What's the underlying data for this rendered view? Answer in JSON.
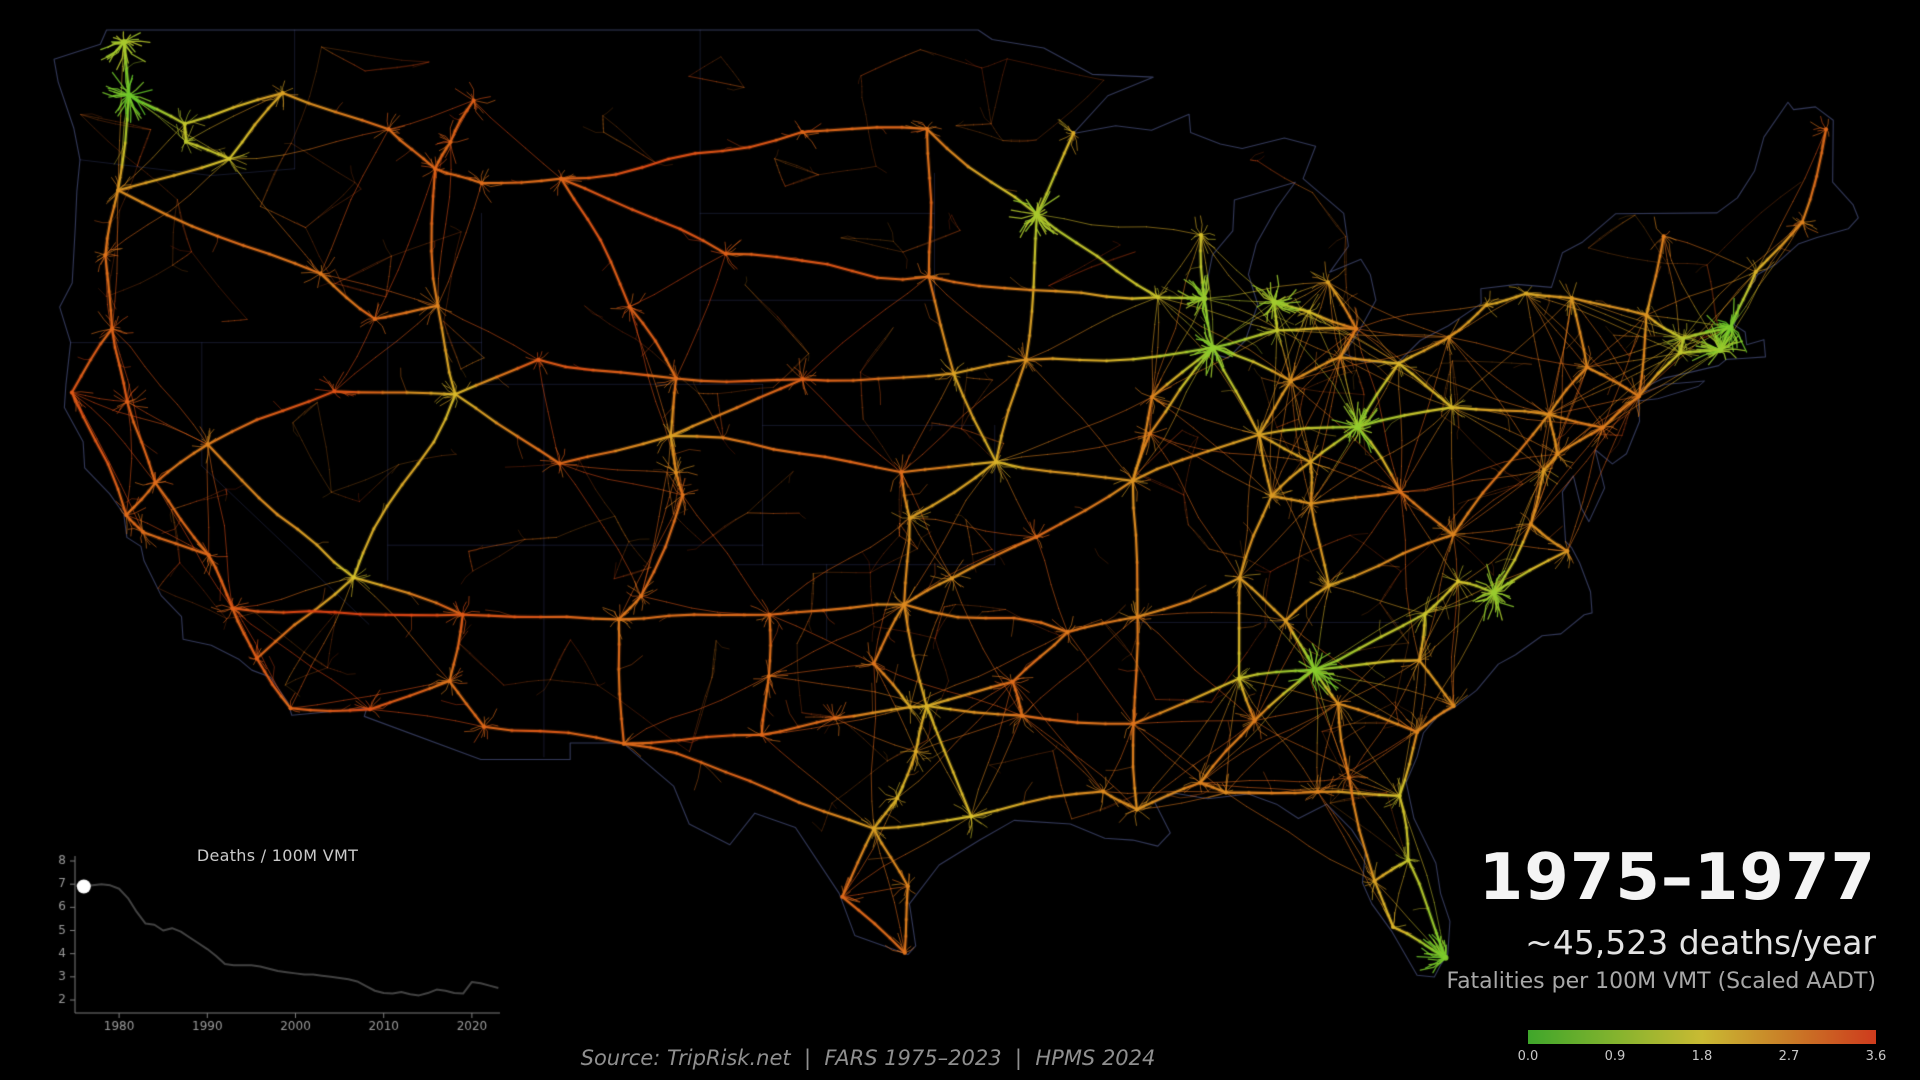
{
  "header": {
    "year_range": "1975–1977",
    "deaths_per_year": "~45,523 deaths/year",
    "metric_label": "Fatalities per 100M VMT (Scaled AADT)"
  },
  "legend": {
    "ticks": [
      "0.0",
      "0.9",
      "1.8",
      "2.7",
      "3.6"
    ],
    "min": 0.0,
    "max": 3.6,
    "stops": [
      {
        "v": 0.0,
        "c": "#3fa62b"
      },
      {
        "v": 0.9,
        "c": "#83b32e"
      },
      {
        "v": 1.8,
        "c": "#c9ba33"
      },
      {
        "v": 2.7,
        "c": "#c97c27"
      },
      {
        "v": 3.6,
        "c": "#ce3b1d"
      }
    ]
  },
  "footer": {
    "source": "Source: TripRisk.net  |  FARS 1975–2023  |  HPMS 2024"
  },
  "chart_data": {
    "type": "line",
    "title": "Deaths / 100M VMT",
    "x_start": 1975,
    "x": [
      1975,
      1976,
      1977,
      1978,
      1979,
      1980,
      1981,
      1982,
      1983,
      1984,
      1985,
      1986,
      1987,
      1988,
      1989,
      1990,
      1991,
      1992,
      1993,
      1994,
      1995,
      1996,
      1997,
      1998,
      1999,
      2000,
      2001,
      2002,
      2003,
      2004,
      2005,
      2006,
      2007,
      2008,
      2009,
      2010,
      2011,
      2012,
      2013,
      2014,
      2015,
      2016,
      2017,
      2018,
      2019,
      2020,
      2021,
      2022,
      2023
    ],
    "values": [
      6.95,
      6.9,
      6.95,
      7.0,
      6.95,
      6.8,
      6.4,
      5.8,
      5.3,
      5.25,
      5.0,
      5.1,
      4.95,
      4.7,
      4.45,
      4.2,
      3.9,
      3.55,
      3.5,
      3.5,
      3.5,
      3.45,
      3.35,
      3.25,
      3.2,
      3.15,
      3.1,
      3.1,
      3.05,
      3.0,
      2.95,
      2.9,
      2.8,
      2.6,
      2.4,
      2.3,
      2.28,
      2.35,
      2.25,
      2.2,
      2.3,
      2.45,
      2.4,
      2.3,
      2.28,
      2.78,
      2.72,
      2.62,
      2.52
    ],
    "marker": {
      "year": 1976,
      "value": 6.9,
      "color": "#ffffff"
    },
    "xticks": [
      1980,
      1990,
      2000,
      2010,
      2020
    ],
    "yticks": [
      2,
      3,
      4,
      5,
      6,
      7,
      8
    ],
    "ylim": [
      2,
      8
    ],
    "xlim": [
      1975,
      2023
    ],
    "grid": false,
    "line_color": "#434343",
    "axis_color": "#7d7d7d",
    "tick_label_color": "#9a9a9a",
    "title_color": "#cbcbcb"
  },
  "map": {
    "colors": {
      "background": "#000000",
      "coastline": "rgba(95,105,165,0.55)",
      "state_line": "rgba(70,80,140,0.30)",
      "road_stops": [
        {
          "v": 0.0,
          "c": "#46c426"
        },
        {
          "v": 0.9,
          "c": "#92cc2e"
        },
        {
          "v": 1.8,
          "c": "#d8c22c"
        },
        {
          "v": 2.7,
          "c": "#dd7a1d"
        },
        {
          "v": 3.6,
          "c": "#dd3d12"
        }
      ]
    },
    "cities": [
      [
        "bel",
        -122.49,
        48.75,
        1.2
      ],
      [
        "sea",
        -122.33,
        47.61,
        0.5
      ],
      [
        "spo",
        -117.41,
        47.66,
        2.2
      ],
      [
        "ell",
        -120.55,
        46.99,
        1.5
      ],
      [
        "yak",
        -120.51,
        46.6,
        1.4
      ],
      [
        "tri",
        -119.12,
        46.22,
        1.7
      ],
      [
        "por",
        -122.68,
        45.52,
        2.4
      ],
      [
        "eug",
        -123.09,
        44.05,
        2.8
      ],
      [
        "med",
        -122.87,
        42.33,
        3.0
      ],
      [
        "eur",
        -124.16,
        40.8,
        3.2
      ],
      [
        "red",
        -122.39,
        40.58,
        3.1
      ],
      [
        "sac",
        -121.49,
        38.58,
        2.9
      ],
      [
        "sfo",
        -122.42,
        37.77,
        2.9
      ],
      [
        "sjc",
        -121.89,
        37.34,
        2.9
      ],
      [
        "fre",
        -119.78,
        36.75,
        3.0
      ],
      [
        "bak",
        -119.02,
        35.37,
        3.1
      ],
      [
        "lax",
        -118.24,
        34.05,
        3.1
      ],
      [
        "sdg",
        -117.16,
        32.72,
        3.0
      ],
      [
        "yum",
        -114.62,
        32.69,
        3.3
      ],
      [
        "phx",
        -112.07,
        33.45,
        2.8
      ],
      [
        "tuc",
        -110.97,
        32.22,
        3.0
      ],
      [
        "fla",
        -111.65,
        35.2,
        3.2
      ],
      [
        "lvg",
        -115.14,
        36.17,
        1.8
      ],
      [
        "rno",
        -119.81,
        39.53,
        2.6
      ],
      [
        "elk",
        -115.76,
        40.83,
        3.3
      ],
      [
        "boi",
        -116.2,
        43.62,
        2.7
      ],
      [
        "twf",
        -114.46,
        42.56,
        2.9
      ],
      [
        "poc",
        -112.45,
        42.87,
        2.6
      ],
      [
        "slc",
        -111.89,
        40.76,
        1.9
      ],
      [
        "rws",
        -109.23,
        41.59,
        3.2
      ],
      [
        "mso",
        -114.02,
        46.87,
        2.9
      ],
      [
        "hel",
        -112.04,
        46.59,
        3.0
      ],
      [
        "but",
        -112.53,
        46.0,
        3.0
      ],
      [
        "gtf",
        -111.3,
        47.5,
        3.1
      ],
      [
        "boz",
        -111.04,
        45.68,
        2.9
      ],
      [
        "bil",
        -108.5,
        45.78,
        3.0
      ],
      [
        "cas",
        -106.31,
        42.85,
        3.1
      ],
      [
        "che",
        -104.82,
        41.14,
        2.9
      ],
      [
        "den",
        -104.99,
        39.74,
        2.2
      ],
      [
        "cos",
        -104.82,
        38.83,
        2.5
      ],
      [
        "pue",
        -104.61,
        38.27,
        2.8
      ],
      [
        "gjt",
        -108.55,
        39.06,
        3.0
      ],
      [
        "abq",
        -106.65,
        35.08,
        2.7
      ],
      [
        "saf",
        -105.94,
        35.69,
        2.8
      ],
      [
        "elp",
        -106.49,
        31.76,
        2.9
      ],
      [
        "bis",
        -100.78,
        46.81,
        3.0
      ],
      [
        "far",
        -96.79,
        46.88,
        2.8
      ],
      [
        "rap",
        -103.23,
        44.08,
        3.1
      ],
      [
        "sif",
        -96.73,
        43.55,
        2.8
      ],
      [
        "nop",
        -100.77,
        41.12,
        3.1
      ],
      [
        "oma",
        -95.93,
        41.26,
        2.2
      ],
      [
        "dsm",
        -93.62,
        41.59,
        2.4
      ],
      [
        "msp",
        -93.27,
        44.98,
        1.2
      ],
      [
        "dul",
        -92.1,
        46.79,
        2.1
      ],
      [
        "kcm",
        -94.58,
        39.1,
        2.0
      ],
      [
        "sal",
        -97.61,
        38.84,
        2.9
      ],
      [
        "wic",
        -97.34,
        37.69,
        2.3
      ],
      [
        "okc",
        -97.52,
        35.47,
        2.5
      ],
      [
        "tul",
        -95.99,
        36.15,
        2.4
      ],
      [
        "sgf",
        -93.29,
        37.21,
        2.9
      ],
      [
        "stl",
        -90.2,
        38.63,
        2.4
      ],
      [
        "chi",
        -87.63,
        41.88,
        0.9
      ],
      [
        "mil",
        -87.91,
        43.04,
        1.0
      ],
      [
        "mad",
        -89.4,
        43.07,
        1.6
      ],
      [
        "grb",
        -88.02,
        44.51,
        1.8
      ],
      [
        "kal",
        -85.59,
        42.29,
        1.5
      ],
      [
        "grr",
        -85.67,
        42.96,
        1.1
      ],
      [
        "lan",
        -84.56,
        42.73,
        1.8
      ],
      [
        "det",
        -83.05,
        42.33,
        2.7
      ],
      [
        "sag",
        -83.95,
        43.42,
        2.2
      ],
      [
        "tol",
        -83.56,
        41.65,
        2.5
      ],
      [
        "ftw",
        -85.14,
        41.08,
        2.4
      ],
      [
        "ind",
        -86.16,
        39.77,
        2.2
      ],
      [
        "peo",
        -89.59,
        40.69,
        2.6
      ],
      [
        "spi",
        -89.65,
        39.8,
        2.7
      ],
      [
        "col",
        -83.0,
        39.96,
        0.9
      ],
      [
        "cle",
        -81.69,
        41.5,
        2.0
      ],
      [
        "cin",
        -84.51,
        39.1,
        2.2
      ],
      [
        "lex",
        -84.5,
        38.05,
        2.4
      ],
      [
        "lou",
        -85.76,
        38.25,
        2.3
      ],
      [
        "cwv",
        -81.63,
        38.35,
        2.8
      ],
      [
        "pit",
        -79.99,
        40.44,
        1.9
      ],
      [
        "eri",
        -80.08,
        42.13,
        2.4
      ],
      [
        "nas",
        -86.78,
        36.16,
        2.3
      ],
      [
        "mem",
        -90.05,
        35.15,
        2.6
      ],
      [
        "lit",
        -92.29,
        34.75,
        2.7
      ],
      [
        "dal",
        -96.8,
        32.78,
        2.0
      ],
      [
        "fwx",
        -97.33,
        32.75,
        2.1
      ],
      [
        "wac",
        -97.15,
        31.55,
        2.1
      ],
      [
        "aus",
        -97.74,
        30.27,
        2.0
      ],
      [
        "sat",
        -98.49,
        29.42,
        2.2
      ],
      [
        "hou",
        -95.37,
        29.76,
        1.8
      ],
      [
        "cor",
        -97.4,
        27.8,
        2.6
      ],
      [
        "lar",
        -99.5,
        27.5,
        3.0
      ],
      [
        "bro",
        -97.5,
        25.9,
        2.8
      ],
      [
        "ama",
        -101.83,
        35.2,
        2.9
      ],
      [
        "lub",
        -101.85,
        33.58,
        2.8
      ],
      [
        "mid",
        -102.08,
        32.0,
        3.0
      ],
      [
        "abi",
        -99.73,
        32.45,
        2.9
      ],
      [
        "wfa",
        -98.49,
        33.91,
        2.8
      ],
      [
        "tex",
        -94.05,
        33.43,
        2.9
      ],
      [
        "shr",
        -93.75,
        32.52,
        2.8
      ],
      [
        "msy",
        -90.07,
        29.95,
        2.4
      ],
      [
        "btr",
        -91.15,
        30.45,
        2.5
      ],
      [
        "jms",
        -90.18,
        32.3,
        2.8
      ],
      [
        "mob",
        -88.04,
        30.69,
        2.6
      ],
      [
        "mgm",
        -86.3,
        32.38,
        2.7
      ],
      [
        "bhm",
        -86.8,
        33.52,
        1.7
      ],
      [
        "atl",
        -84.39,
        33.75,
        0.8
      ],
      [
        "mac",
        -83.63,
        32.84,
        2.4
      ],
      [
        "vld",
        -83.28,
        30.83,
        2.7
      ],
      [
        "cha",
        -85.31,
        35.05,
        2.3
      ],
      [
        "kno",
        -83.92,
        35.96,
        2.2
      ],
      [
        "cbs",
        -81.03,
        34.0,
        2.3
      ],
      [
        "clt",
        -80.84,
        35.23,
        1.6
      ],
      [
        "gbo",
        -79.79,
        36.07,
        1.8
      ],
      [
        "ral",
        -78.64,
        35.78,
        1.0
      ],
      [
        "chs",
        -79.93,
        32.78,
        2.5
      ],
      [
        "sav",
        -81.1,
        32.08,
        2.6
      ],
      [
        "jax",
        -81.66,
        30.33,
        1.7
      ],
      [
        "orl",
        -81.38,
        28.54,
        1.5
      ],
      [
        "tpa",
        -82.46,
        27.95,
        2.2
      ],
      [
        "ftm",
        -81.87,
        26.64,
        2.0
      ],
      [
        "mia",
        -80.19,
        25.76,
        0.7
      ],
      [
        "tal",
        -84.28,
        30.44,
        2.6
      ],
      [
        "pen",
        -87.22,
        30.42,
        2.5
      ],
      [
        "buf",
        -78.88,
        42.89,
        2.2
      ],
      [
        "roc",
        -77.61,
        43.16,
        2.1
      ],
      [
        "syr",
        -76.15,
        43.05,
        2.3
      ],
      [
        "alb",
        -73.76,
        42.65,
        2.4
      ],
      [
        "bur",
        -73.21,
        44.48,
        2.7
      ],
      [
        "nyc",
        -74.0,
        40.71,
        2.7
      ],
      [
        "scr",
        -75.66,
        41.41,
        2.6
      ],
      [
        "har",
        -76.88,
        40.27,
        2.5
      ],
      [
        "phi",
        -75.16,
        39.95,
        2.7
      ],
      [
        "bal",
        -76.61,
        39.29,
        2.5
      ],
      [
        "was",
        -77.04,
        38.9,
        2.3
      ],
      [
        "ric",
        -77.46,
        37.54,
        2.5
      ],
      [
        "nor",
        -76.29,
        36.85,
        2.4
      ],
      [
        "roa",
        -79.94,
        37.27,
        2.6
      ],
      [
        "bos",
        -71.06,
        42.36,
        0.6
      ],
      [
        "pvd",
        -71.41,
        41.82,
        1.0
      ],
      [
        "hfd",
        -72.68,
        41.76,
        1.5
      ],
      [
        "spm",
        -72.58,
        42.1,
        1.4
      ],
      [
        "pme",
        -70.26,
        43.66,
        2.0
      ],
      [
        "ban",
        -68.77,
        44.8,
        2.6
      ],
      [
        "car",
        -68.01,
        46.87,
        3.0
      ]
    ],
    "corridors": [
      "bel sea",
      "sea por",
      "sea ell",
      "ell spo",
      "ell yak",
      "yak tri",
      "tri por",
      "tri spo",
      "por eug",
      "eug med",
      "med red",
      "med eur",
      "eur sfo",
      "red sac",
      "sac sfo",
      "sac fre",
      "sac rno",
      "sfo sjc",
      "sjc fre",
      "fre bak",
      "bak lax",
      "lax sdg",
      "lax lvg",
      "sdg yum",
      "yum phx",
      "phx tuc",
      "tuc elp",
      "phx fla",
      "fla lvg",
      "fla bak",
      "abq fla",
      "lvg slc",
      "lvg rno",
      "rno elk",
      "elk slc",
      "slc poc",
      "poc twf",
      "twf boi",
      "boi por",
      "poc but",
      "slc rws",
      "rws che",
      "slc gjt",
      "gjt den",
      "spo mso",
      "mso but",
      "but hel",
      "hel gtf",
      "but boz",
      "boz bil",
      "bil rap",
      "bil bis",
      "bil cas",
      "cas che",
      "che den",
      "den cos",
      "cos pue",
      "pue saf",
      "saf abq",
      "abq elp",
      "abq ama",
      "den nop",
      "che nop",
      "nop oma",
      "den sal",
      "sal kcm",
      "sal wic",
      "oma dsm",
      "dsm chi",
      "dsm kcm",
      "dsm msp",
      "kcm oma",
      "kcm stl",
      "kcm wic",
      "wic okc",
      "okc tul",
      "okc dal",
      "okc ama",
      "okc wfa",
      "wfa fwx",
      "tul sgf",
      "sgf stl",
      "stl spi",
      "spi chi",
      "stl ind",
      "stl mem",
      "chi mil",
      "mil mad",
      "mad sif",
      "mil grb",
      "msp mad",
      "msp dul",
      "msp far",
      "far bis",
      "sif far",
      "sif oma",
      "sif rap",
      "chi ind",
      "chi ftw",
      "chi kal",
      "kal grr",
      "kal det",
      "grr lan",
      "lan det",
      "det sag",
      "det tol",
      "tol cle",
      "tol ftw",
      "ftw ind",
      "ind cin",
      "ind col",
      "cin col",
      "cin lou",
      "cin lex",
      "lou lex",
      "lou ind",
      "lou nas",
      "lex kno",
      "col cle",
      "col pit",
      "col cwv",
      "cle pit",
      "cle eri",
      "eri buf",
      "buf roc",
      "roc syr",
      "syr alb",
      "alb nyc",
      "alb bur",
      "alb spm",
      "spm bos",
      "spm hfd",
      "hfd nyc",
      "hfd pvd",
      "pvd bos",
      "bos pme",
      "pme ban",
      "ban car",
      "nyc scr",
      "scr syr",
      "scr har",
      "har pit",
      "har phi",
      "har bal",
      "phi nyc",
      "phi bal",
      "bal was",
      "was ric",
      "ric nor",
      "nor ral",
      "ric ral",
      "ral gbo",
      "gbo clt",
      "clt cbs",
      "cbs atl",
      "cbs chs",
      "chs sav",
      "sav jax",
      "sav mac",
      "cwv roa",
      "cwv lex",
      "roa kno",
      "roa har",
      "kno cha",
      "cha atl",
      "cha nas",
      "nas mem",
      "nas bhm",
      "mem lit",
      "mem jms",
      "lit okc",
      "lit tex",
      "tex dal",
      "tex shr",
      "shr dal",
      "shr jms",
      "jms bhm",
      "jms msy",
      "bhm atl",
      "bhm mgm",
      "mgm atl",
      "mgm mob",
      "mob msy",
      "mob pen",
      "pen tal",
      "tal jax",
      "jax orl",
      "orl tpa",
      "orl mia",
      "tpa ftm",
      "ftm mia",
      "tpa vld",
      "vld mac",
      "mac atl",
      "atl clt",
      "dal fwx",
      "dal wac",
      "wac aus",
      "aus sat",
      "sat hou",
      "hou dal",
      "hou btr",
      "btr msy",
      "sat lar",
      "sat cor",
      "cor bro",
      "lar bro",
      "sat elp",
      "elp mid",
      "mid abi",
      "abi fwx",
      "ama lub",
      "lub mid",
      "peo chi",
      "peo stl"
    ]
  }
}
